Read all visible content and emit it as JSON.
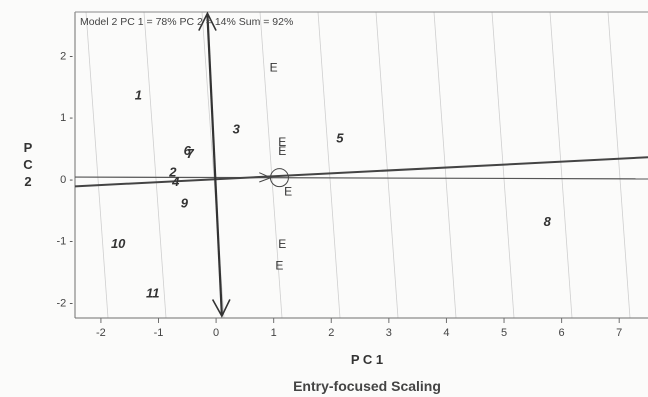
{
  "chart_data": {
    "type": "scatter",
    "title": "Model 2 PC 1 = 78% PC 2 = 14% Sum = 92%",
    "xlabel": "P C 1",
    "ylabel": [
      "P",
      "C",
      "2"
    ],
    "subtitle": "Entry-focused Scaling",
    "xlim": [
      -2.45,
      7.5
    ],
    "ylim": [
      -2.25,
      2.7
    ],
    "xticks": [
      -2,
      -1,
      0,
      1,
      2,
      3,
      4,
      5,
      6,
      7
    ],
    "yticks": [
      -2,
      -1,
      0,
      1,
      2
    ],
    "xtick_labels": [
      "-2",
      "-1",
      "0",
      "1",
      "2",
      "3",
      "4",
      "5",
      "6",
      "7"
    ],
    "ytick_labels": [
      "-2 -",
      "-1 -",
      "0 -",
      "1 -",
      "2 -"
    ],
    "grid": false,
    "row_points": [
      {
        "label": "1",
        "x": -1.35,
        "y": 1.35
      },
      {
        "label": "2",
        "x": -0.75,
        "y": 0.1
      },
      {
        "label": "3",
        "x": 0.35,
        "y": 0.8
      },
      {
        "label": "4",
        "x": -0.7,
        "y": -0.05
      },
      {
        "label": "5",
        "x": 2.15,
        "y": 0.65
      },
      {
        "label": "6",
        "x": -0.5,
        "y": 0.45
      },
      {
        "label": "7",
        "x": -0.45,
        "y": 0.4
      },
      {
        "label": "8",
        "x": 5.75,
        "y": -0.7
      },
      {
        "label": "9",
        "x": -0.55,
        "y": -0.4
      },
      {
        "label": "10",
        "x": -1.7,
        "y": -1.05
      },
      {
        "label": "11",
        "x": -1.1,
        "y": -1.85
      }
    ],
    "column_points": [
      {
        "label": "E",
        "x": 1.0,
        "y": 1.8
      },
      {
        "label": "E",
        "x": 1.15,
        "y": 0.6
      },
      {
        "label": "E",
        "x": 1.15,
        "y": 0.45
      },
      {
        "label": "E",
        "x": 1.25,
        "y": -0.2
      },
      {
        "label": "E",
        "x": 1.15,
        "y": -1.05
      },
      {
        "label": "E",
        "x": 1.1,
        "y": -1.4
      }
    ]
  }
}
